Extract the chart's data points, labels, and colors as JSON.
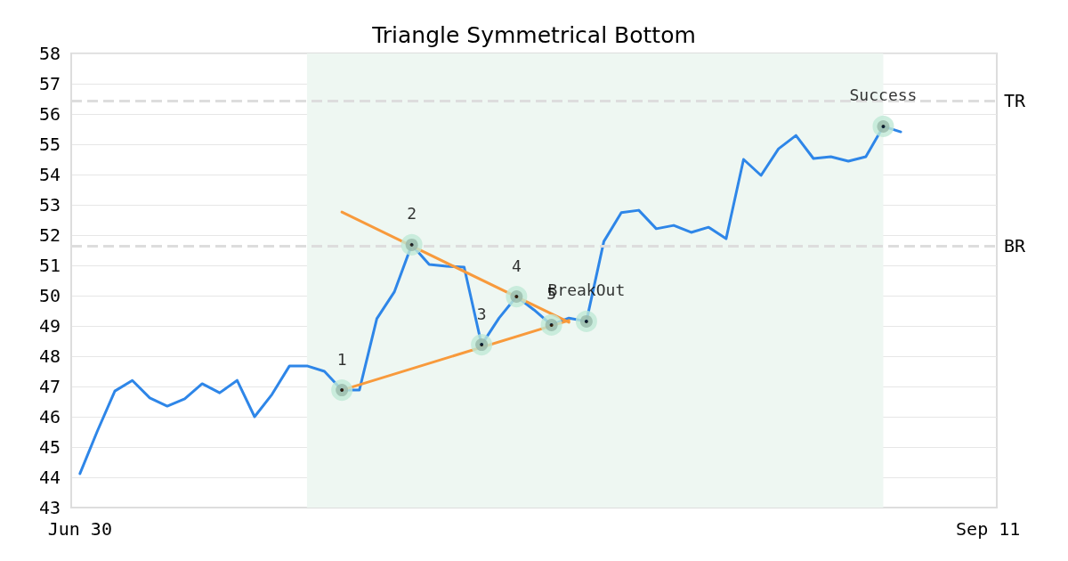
{
  "chart_data": {
    "type": "line",
    "title": "Triangle Symmetrical Bottom",
    "categories": [
      "Jun 30",
      null,
      null,
      null,
      null,
      null,
      null,
      null,
      null,
      null,
      null,
      null,
      null,
      null,
      null,
      null,
      null,
      null,
      null,
      null,
      null,
      null,
      null,
      null,
      null,
      null,
      null,
      null,
      null,
      null,
      null,
      null,
      null,
      null,
      null,
      null,
      null,
      null,
      null,
      null,
      null,
      null,
      null,
      null,
      null,
      null,
      null,
      null,
      null,
      null,
      null,
      null,
      "Sep 11"
    ],
    "series": [
      {
        "color": "#2e86e8",
        "values": [
          44.12,
          45.53,
          46.85,
          47.2,
          46.62,
          46.35,
          46.59,
          47.09,
          46.79,
          47.2,
          46.0,
          46.74,
          47.68,
          47.68,
          47.5,
          46.88,
          46.88,
          49.24,
          50.12,
          51.68,
          51.03,
          50.97,
          50.94,
          48.38,
          49.26,
          49.97,
          49.53,
          49.03,
          49.26,
          49.15,
          51.79,
          52.74,
          52.82,
          52.21,
          52.32,
          52.09,
          52.26,
          51.88,
          54.5,
          53.97,
          54.85,
          55.29,
          54.53,
          54.59,
          54.44,
          54.59,
          55.59,
          55.41,
          null,
          null,
          null,
          null,
          null
        ]
      },
      {
        "color": "#f89a3c",
        "values": [
          null,
          null,
          null,
          null,
          null,
          null,
          null,
          null,
          null,
          null,
          null,
          null,
          null,
          null,
          null,
          52.76,
          null,
          null,
          null,
          null,
          null,
          null,
          null,
          null,
          null,
          null,
          null,
          null,
          49.12,
          null,
          null,
          null,
          null,
          null,
          null,
          null,
          null,
          null,
          null,
          null,
          null,
          null,
          null,
          null,
          null,
          null,
          null,
          null,
          null,
          null,
          null,
          null,
          null
        ]
      },
      {
        "color": "#f89a3c",
        "values": [
          null,
          null,
          null,
          null,
          null,
          null,
          null,
          null,
          null,
          null,
          null,
          null,
          null,
          null,
          null,
          46.88,
          null,
          null,
          null,
          null,
          null,
          null,
          null,
          null,
          null,
          null,
          null,
          null,
          49.18,
          null,
          null,
          null,
          null,
          null,
          null,
          null,
          null,
          null,
          null,
          null,
          null,
          null,
          null,
          null,
          null,
          null,
          null,
          null,
          null,
          null,
          null,
          null,
          null
        ]
      },
      {
        "type": "scatter",
        "marker": "circle",
        "color": "#000000",
        "values": [
          null,
          null,
          null,
          null,
          null,
          null,
          null,
          null,
          null,
          null,
          null,
          null,
          null,
          null,
          null,
          46.88,
          null,
          null,
          null,
          51.68,
          null,
          null,
          null,
          48.38,
          null,
          49.97,
          null,
          49.03,
          null,
          49.15,
          null,
          null,
          null,
          null,
          null,
          null,
          null,
          null,
          null,
          null,
          null,
          null,
          null,
          null,
          null,
          null,
          55.59,
          null,
          null,
          null,
          null,
          null,
          null
        ]
      }
    ],
    "ylim": [
      43,
      58
    ],
    "yticks": [
      43,
      44,
      45,
      46,
      47,
      48,
      49,
      50,
      51,
      52,
      53,
      54,
      55,
      56,
      57,
      58
    ],
    "grid": "y",
    "marker": "none",
    "line_style": "solid",
    "ref_lines": [
      {
        "axis": "y",
        "value": 56.44,
        "label": "TR",
        "color": "#dddddd",
        "line_style": "dashed"
      },
      {
        "axis": "y",
        "value": 51.65,
        "label": "BR",
        "color": "#dddddd",
        "line_style": "dashed"
      }
    ],
    "annotations": [
      "1",
      "2",
      "3",
      "4",
      "5",
      "BreakOut",
      "Success"
    ]
  }
}
